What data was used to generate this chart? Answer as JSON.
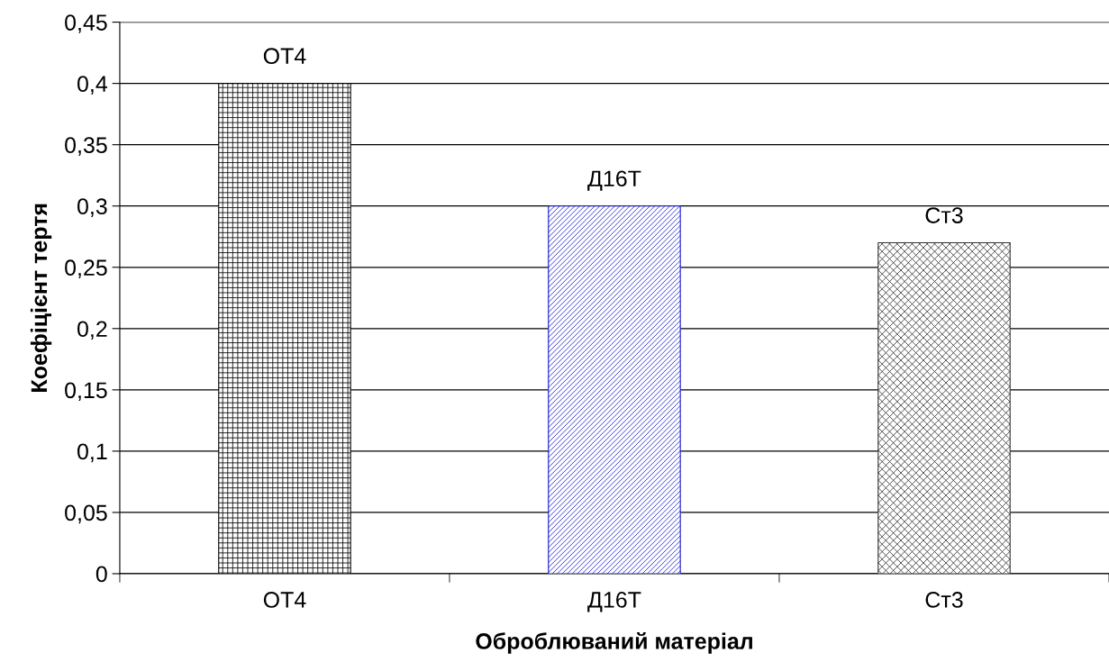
{
  "chart_data": {
    "type": "bar",
    "xlabel": "Оброблюваний матеріал",
    "ylabel": "Коефіцієнт тертя",
    "categories": [
      "ОТ4",
      "Д16Т",
      "Ст3"
    ],
    "values": [
      0.4,
      0.3,
      0.27
    ],
    "colors": [
      "#000000",
      "#1a1acc",
      "#333333"
    ],
    "ylim": [
      0,
      0.45
    ],
    "yticks": [
      0,
      {
        "value": 0.05,
        "label": "0,05"
      },
      {
        "value": 0.1,
        "label": "0,1"
      },
      {
        "value": 0.15,
        "label": "0,15"
      },
      {
        "value": 0.2,
        "label": "0,2"
      },
      {
        "value": 0.25,
        "label": "0,25"
      },
      {
        "value": 0.3,
        "label": "0,3"
      },
      {
        "value": 0.35,
        "label": "0,35"
      },
      {
        "value": 0.4,
        "label": "0,4"
      },
      {
        "value": 0.45,
        "label": "0,45"
      }
    ],
    "grid": "y",
    "legend": false,
    "annotations": [
      {
        "text": "ОТ4",
        "x": "ОТ4",
        "y": 0.4
      },
      {
        "text": "Д16Т",
        "x": "Д16Т",
        "y": 0.3
      },
      {
        "text": "Ст3",
        "x": "Ст3",
        "y": 0.27
      }
    ]
  }
}
